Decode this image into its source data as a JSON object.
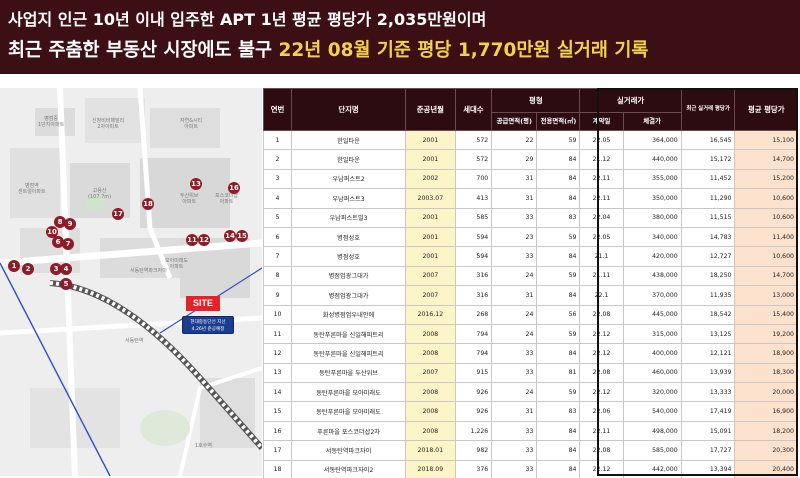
{
  "header": {
    "line1": "사업지 인근 10년 이내 입주한 APT 1년 평균 평당가 2,035만원이며",
    "line2_prefix": "최근 주춤한 부동산 시장에도 불구 ",
    "line2_highlight": "22년 08월 기준 평당 1,770만원 실거래 기록"
  },
  "colors": {
    "header_bg": "#3b0f14",
    "highlight_text": "#f2d24b",
    "table_header_bg": "#2c0c10",
    "year_col_bg": "#fdf4c7",
    "avg_price_col_bg": "#fce1cc",
    "map_pin": "#8e1b26",
    "site_badge": "#e62229",
    "station_box": "#1c3d8f"
  },
  "map": {
    "site_label": "SITE",
    "station_line1": "현대중동단선 지선",
    "station_line2": "4.26년 준공예정",
    "pins": [
      "1",
      "2",
      "3",
      "4",
      "5",
      "6",
      "7",
      "8",
      "9",
      "10",
      "11",
      "12",
      "13",
      "14",
      "15",
      "16",
      "17",
      "18"
    ]
  },
  "table": {
    "headers": {
      "no": "연번",
      "name": "단지명",
      "year": "준공년월",
      "units": "세대수",
      "pyeong": "평형",
      "supply": "공급면적(평)",
      "exclusive": "전용면적(㎡)",
      "deal": "실거래가",
      "contract": "계약일",
      "deal_price": "체결가",
      "deal_per": "최근 실거래 평당가",
      "avg": "평균 평당가"
    },
    "rows": [
      [
        "1",
        "한일타운",
        "2001",
        "572",
        "22",
        "59",
        "22.05",
        "364,000",
        "16,545",
        "15,100"
      ],
      [
        "2",
        "한일타운",
        "2001",
        "572",
        "29",
        "84",
        "21.12",
        "440,000",
        "15,172",
        "14,700"
      ],
      [
        "3",
        "우남퍼스트2",
        "2002",
        "700",
        "31",
        "84",
        "22.11",
        "355,000",
        "11,452",
        "15,200"
      ],
      [
        "4",
        "우남퍼스트3",
        "2003.07",
        "413",
        "31",
        "84",
        "22.11",
        "350,000",
        "11,290",
        "10,600"
      ],
      [
        "5",
        "우남퍼스트빌3",
        "2001",
        "585",
        "33",
        "83",
        "22.04",
        "380,000",
        "11,515",
        "10,600"
      ],
      [
        "6",
        "병점성호",
        "2001",
        "594",
        "23",
        "59",
        "22.05",
        "340,000",
        "14,783",
        "11,400"
      ],
      [
        "7",
        "병점성호",
        "2001",
        "594",
        "33",
        "84",
        "21.1",
        "420,000",
        "12,727",
        "10,600"
      ],
      [
        "8",
        "병점엄광그대가",
        "2007",
        "316",
        "24",
        "59",
        "21.11",
        "438,000",
        "18,250",
        "14,700"
      ],
      [
        "9",
        "병점엄광그대가",
        "2007",
        "316",
        "31",
        "84",
        "22.1",
        "370,000",
        "11,935",
        "13,000"
      ],
      [
        "10",
        "화성병점엄우내안에",
        "2016.12",
        "268",
        "24",
        "56",
        "22.08",
        "445,000",
        "18,542",
        "15,400"
      ],
      [
        "11",
        "동탄푸른마을 신일해피트리",
        "2008",
        "794",
        "24",
        "59",
        "22.12",
        "315,000",
        "13,125",
        "19,200"
      ],
      [
        "12",
        "동탄푸른마을 신일해피트리",
        "2008",
        "794",
        "33",
        "84",
        "22.12",
        "400,000",
        "12,121",
        "18,900"
      ],
      [
        "13",
        "동탄푸른마을 두산위브",
        "2007",
        "915",
        "33",
        "81",
        "22.08",
        "460,000",
        "13,939",
        "18,300"
      ],
      [
        "14",
        "동탄푸른마을 모아미래도",
        "2008",
        "926",
        "24",
        "59",
        "22.12",
        "320,000",
        "13,333",
        "20,000"
      ],
      [
        "15",
        "동탄푸른마을 모아미래도",
        "2008",
        "926",
        "31",
        "83",
        "22.06",
        "540,000",
        "17,419",
        "16,900"
      ],
      [
        "16",
        "푸른마을 포스코더샵2차",
        "2008",
        "1,226",
        "33",
        "84",
        "22.11",
        "498,000",
        "15,091",
        "18,200"
      ],
      [
        "17",
        "서동탄역파크자이",
        "2018.01",
        "982",
        "33",
        "84",
        "22.08",
        "585,000",
        "17,727",
        "20,300"
      ],
      [
        "18",
        "서동탄역파크자이2",
        "2018.09",
        "376",
        "33",
        "84",
        "22.12",
        "442,000",
        "13,394",
        "20,400"
      ]
    ]
  }
}
